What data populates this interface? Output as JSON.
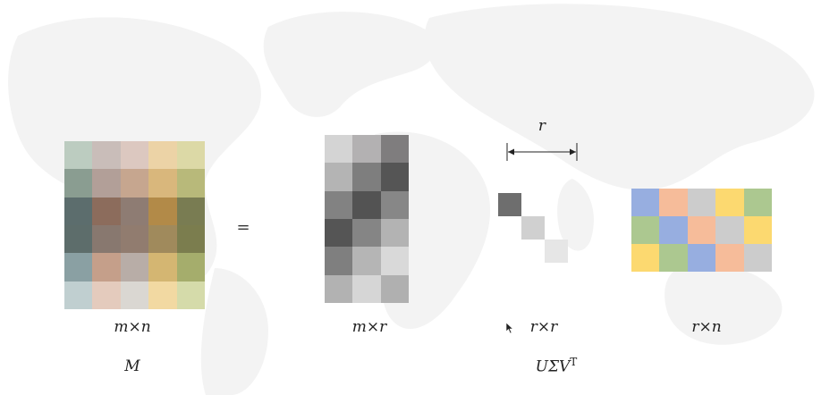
{
  "equals": "=",
  "r_label": "r",
  "matrix_m": {
    "dim_label": "m×n",
    "name_label": "M",
    "rows": [
      [
        "#bcccc0",
        "#c9bdb9",
        "#dcc8c0",
        "#ecd3a6",
        "#dcd9a6"
      ],
      [
        "#8a9d91",
        "#b29f98",
        "#c6a68f",
        "#d9b77c",
        "#b8b97a"
      ],
      [
        "#5c6d6d",
        "#8c6c5c",
        "#8e7c73",
        "#b28a48",
        "#797c52"
      ],
      [
        "#5d6d6b",
        "#88786f",
        "#917c6f",
        "#a08a5c",
        "#7b7d4e"
      ],
      [
        "#8aa0a3",
        "#c59f8a",
        "#b8ada7",
        "#d4b672",
        "#a5ad6c"
      ],
      [
        "#c0cfd0",
        "#e4cbbd",
        "#dad7d2",
        "#f2d9a2",
        "#d5dbaa"
      ]
    ]
  },
  "matrix_u": {
    "dim_label": "m×r",
    "rows": [
      [
        "#d4d4d4",
        "#b3b1b2",
        "#7f7d7e"
      ],
      [
        "#b4b4b4",
        "#7e7e7e",
        "#555555"
      ],
      [
        "#828282",
        "#535353",
        "#878787"
      ],
      [
        "#555555",
        "#858585",
        "#b3b3b3"
      ],
      [
        "#7f7f7f",
        "#b5b5b5",
        "#d9d9d9"
      ],
      [
        "#b2b2b2",
        "#d6d6d6",
        "#b0b0b0"
      ]
    ]
  },
  "matrix_sigma": {
    "dim_label": "r×r",
    "name_label": "UΣV",
    "name_sup": "T",
    "diag": [
      "#6e6e6e",
      "#d0d0d0",
      "#e6e6e6"
    ]
  },
  "matrix_v": {
    "dim_label": "r×n",
    "rows": [
      [
        "#97aee0",
        "#f6bc9a",
        "#cccccc",
        "#fcd970",
        "#acc890"
      ],
      [
        "#acc890",
        "#97aee0",
        "#f6bc9a",
        "#cccccc",
        "#fcd970"
      ],
      [
        "#fcd970",
        "#acc890",
        "#97aee0",
        "#f6bc9a",
        "#cccccc"
      ]
    ]
  }
}
